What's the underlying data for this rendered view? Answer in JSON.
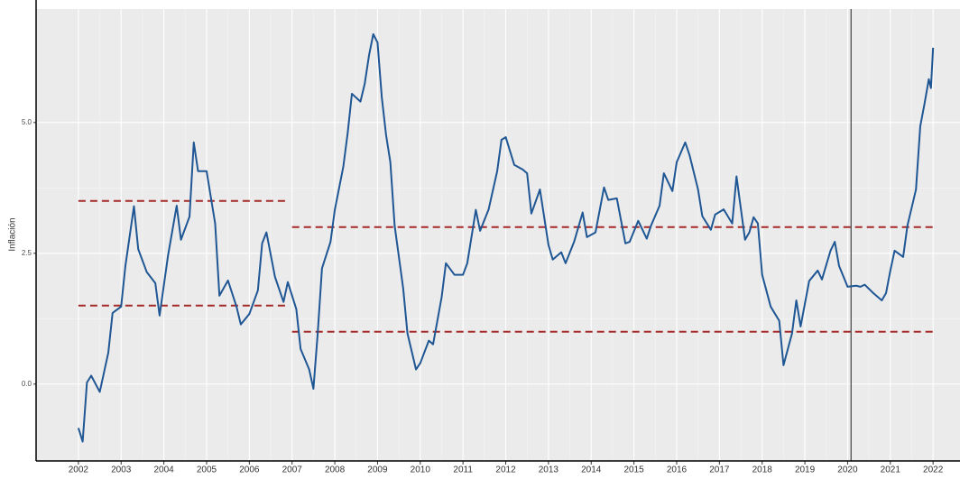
{
  "chart_data": {
    "type": "line",
    "y_label": "Inflación",
    "x": [
      2002.0,
      2002.1,
      2002.2,
      2002.3,
      2002.5,
      2002.7,
      2002.8,
      2003.0,
      2003.1,
      2003.3,
      2003.4,
      2003.6,
      2003.8,
      2003.9,
      2004.1,
      2004.3,
      2004.4,
      2004.6,
      2004.7,
      2004.8,
      2005.0,
      2005.2,
      2005.3,
      2005.5,
      2005.7,
      2005.8,
      2006.0,
      2006.2,
      2006.3,
      2006.4,
      2006.6,
      2006.8,
      2006.9,
      2007.1,
      2007.2,
      2007.4,
      2007.5,
      2007.6,
      2007.7,
      2007.9,
      2008.0,
      2008.2,
      2008.3,
      2008.4,
      2008.6,
      2008.7,
      2008.8,
      2008.9,
      2009.0,
      2009.1,
      2009.2,
      2009.3,
      2009.4,
      2009.6,
      2009.7,
      2009.9,
      2010.0,
      2010.2,
      2010.3,
      2010.5,
      2010.6,
      2010.8,
      2011.0,
      2011.1,
      2011.3,
      2011.4,
      2011.6,
      2011.8,
      2011.9,
      2012.0,
      2012.2,
      2012.4,
      2012.5,
      2012.6,
      2012.8,
      2013.0,
      2013.1,
      2013.3,
      2013.4,
      2013.6,
      2013.8,
      2013.9,
      2014.1,
      2014.3,
      2014.4,
      2014.6,
      2014.8,
      2014.9,
      2015.1,
      2015.3,
      2015.4,
      2015.6,
      2015.7,
      2015.9,
      2016.0,
      2016.2,
      2016.3,
      2016.5,
      2016.6,
      2016.8,
      2016.9,
      2017.1,
      2017.3,
      2017.4,
      2017.6,
      2017.7,
      2017.8,
      2017.9,
      2018.0,
      2018.2,
      2018.4,
      2018.5,
      2018.7,
      2018.8,
      2018.9,
      2019.1,
      2019.3,
      2019.4,
      2019.6,
      2019.7,
      2019.8,
      2020.0,
      2020.2,
      2020.3,
      2020.4,
      2020.6,
      2020.8,
      2020.9,
      2021.0,
      2021.1,
      2021.3,
      2021.4,
      2021.6,
      2021.7,
      2021.8,
      2021.9,
      2021.95,
      2022.0
    ],
    "series": [
      {
        "color": "#1f5694",
        "values": [
          -0.84,
          -1.1,
          0.03,
          0.16,
          -0.15,
          0.6,
          1.36,
          1.48,
          2.26,
          3.4,
          2.58,
          2.14,
          1.93,
          1.31,
          2.47,
          3.41,
          2.76,
          3.2,
          4.62,
          4.07,
          4.07,
          3.07,
          1.69,
          1.98,
          1.48,
          1.14,
          1.34,
          1.79,
          2.69,
          2.9,
          2.05,
          1.57,
          1.95,
          1.43,
          0.67,
          0.28,
          -0.09,
          0.97,
          2.21,
          2.72,
          3.33,
          4.16,
          4.79,
          5.55,
          5.4,
          5.74,
          6.28,
          6.69,
          6.53,
          5.48,
          4.76,
          4.24,
          3.03,
          1.83,
          0.97,
          0.28,
          0.4,
          0.83,
          0.76,
          1.66,
          2.31,
          2.09,
          2.09,
          2.31,
          3.33,
          2.93,
          3.34,
          4.07,
          4.67,
          4.72,
          4.19,
          4.1,
          4.03,
          3.26,
          3.72,
          2.66,
          2.38,
          2.52,
          2.31,
          2.72,
          3.28,
          2.81,
          2.9,
          3.76,
          3.52,
          3.55,
          2.69,
          2.72,
          3.12,
          2.78,
          3.03,
          3.41,
          4.03,
          3.69,
          4.24,
          4.62,
          4.38,
          3.72,
          3.21,
          2.95,
          3.24,
          3.34,
          3.07,
          3.97,
          2.76,
          2.9,
          3.19,
          3.07,
          2.09,
          1.48,
          1.21,
          0.36,
          0.97,
          1.6,
          1.1,
          1.97,
          2.17,
          2.0,
          2.55,
          2.72,
          2.26,
          1.86,
          1.88,
          1.86,
          1.9,
          1.74,
          1.6,
          1.74,
          2.17,
          2.55,
          2.43,
          3.03,
          3.72,
          4.93,
          5.36,
          5.83,
          5.66,
          6.43
        ]
      }
    ],
    "reference_lines": [
      {
        "y": 3.5,
        "x": [
          2002,
          2006.92
        ],
        "color": "#a52a2a"
      },
      {
        "y": 1.5,
        "x": [
          2002,
          2006.92
        ],
        "color": "#a52a2a"
      },
      {
        "y": 3.0,
        "x": [
          2007,
          2022
        ],
        "color": "#a52a2a"
      },
      {
        "y": 1.0,
        "x": [
          2007,
          2022
        ],
        "color": "#a52a2a"
      }
    ],
    "vline": 2020.08,
    "xlim": [
      2001.01,
      2022.63
    ],
    "ylim": [
      -1.47,
      7.17
    ],
    "xticks": [
      2002,
      2003,
      2004,
      2005,
      2006,
      2007,
      2008,
      2009,
      2010,
      2011,
      2012,
      2013,
      2014,
      2015,
      2016,
      2017,
      2018,
      2019,
      2020,
      2021,
      2022
    ],
    "yticks": [
      {
        "value": 0,
        "label": "0.0"
      },
      {
        "value": 2.5,
        "label": "2.5"
      },
      {
        "value": 5,
        "label": "5.0"
      }
    ],
    "grid": true
  }
}
